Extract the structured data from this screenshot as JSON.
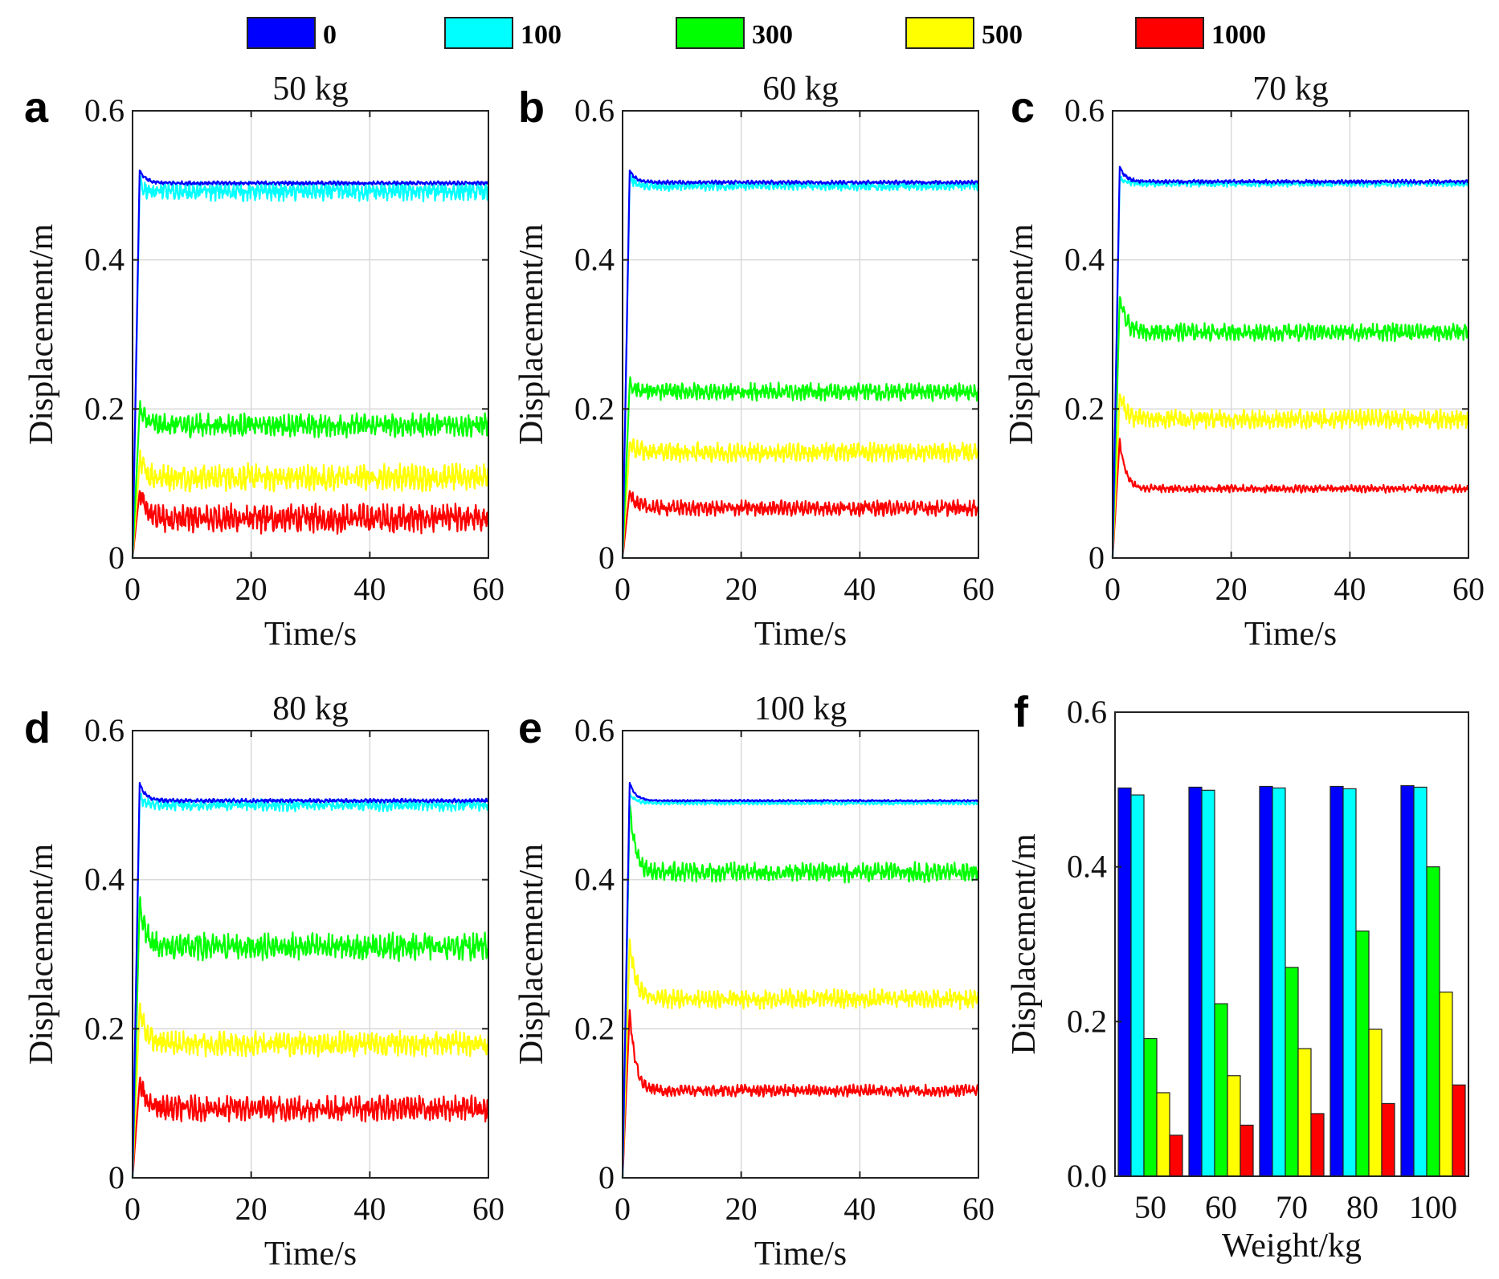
{
  "legend": {
    "entries": [
      {
        "label": "0",
        "color": "#0000ff"
      },
      {
        "label": "100",
        "color": "#00ffff"
      },
      {
        "label": "300",
        "color": "#00ff00"
      },
      {
        "label": "500",
        "color": "#ffff00"
      },
      {
        "label": "1000",
        "color": "#ff0000"
      }
    ]
  },
  "chart_data": [
    {
      "panel": "a",
      "type": "line",
      "title": "50 kg",
      "xlabel": "Time/s",
      "ylabel": "Displacement/m",
      "xlim": [
        0,
        60
      ],
      "ylim": [
        0,
        0.6
      ],
      "xticks": [
        "0",
        "20",
        "40",
        "60"
      ],
      "yticks": [
        "0",
        "0.2",
        "0.4",
        "0.6"
      ],
      "grid": true,
      "series": [
        {
          "name": "0",
          "color": "#0000ff",
          "peak": 0.52,
          "steady": 0.503,
          "noise": 0.002
        },
        {
          "name": "100",
          "color": "#00ffff",
          "peak": 0.5,
          "steady": 0.492,
          "noise": 0.01
        },
        {
          "name": "300",
          "color": "#00ff00",
          "peak": 0.2,
          "steady": 0.178,
          "noise": 0.012
        },
        {
          "name": "500",
          "color": "#ffff00",
          "peak": 0.13,
          "steady": 0.108,
          "noise": 0.014
        },
        {
          "name": "1000",
          "color": "#ff0000",
          "peak": 0.09,
          "steady": 0.053,
          "noise": 0.015
        }
      ]
    },
    {
      "panel": "b",
      "type": "line",
      "title": "60 kg",
      "xlabel": "Time/s",
      "ylabel": "Displacement/m",
      "xlim": [
        0,
        60
      ],
      "ylim": [
        0,
        0.6
      ],
      "xticks": [
        "0",
        "20",
        "40",
        "60"
      ],
      "yticks": [
        "0",
        "0.2",
        "0.4",
        "0.6"
      ],
      "grid": true,
      "series": [
        {
          "name": "0",
          "color": "#0000ff",
          "peak": 0.52,
          "steady": 0.504,
          "noise": 0.002
        },
        {
          "name": "100",
          "color": "#00ffff",
          "peak": 0.51,
          "steady": 0.499,
          "noise": 0.005
        },
        {
          "name": "300",
          "color": "#00ff00",
          "peak": 0.235,
          "steady": 0.223,
          "noise": 0.009
        },
        {
          "name": "500",
          "color": "#ffff00",
          "peak": 0.155,
          "steady": 0.142,
          "noise": 0.01
        },
        {
          "name": "1000",
          "color": "#ff0000",
          "peak": 0.09,
          "steady": 0.067,
          "noise": 0.008
        }
      ]
    },
    {
      "panel": "c",
      "type": "line",
      "title": "70 kg",
      "xlabel": "Time/s",
      "ylabel": "Displacement/m",
      "xlim": [
        0,
        60
      ],
      "ylim": [
        0,
        0.6
      ],
      "xticks": [
        "0",
        "20",
        "40",
        "60"
      ],
      "yticks": [
        "0",
        "0.2",
        "0.4",
        "0.6"
      ],
      "grid": true,
      "series": [
        {
          "name": "0",
          "color": "#0000ff",
          "peak": 0.525,
          "steady": 0.505,
          "noise": 0.002
        },
        {
          "name": "100",
          "color": "#00ffff",
          "peak": 0.51,
          "steady": 0.502,
          "noise": 0.003
        },
        {
          "name": "300",
          "color": "#00ff00",
          "peak": 0.35,
          "steady": 0.303,
          "noise": 0.009
        },
        {
          "name": "500",
          "color": "#ffff00",
          "peak": 0.22,
          "steady": 0.186,
          "noise": 0.01
        },
        {
          "name": "1000",
          "color": "#ff0000",
          "peak": 0.16,
          "steady": 0.093,
          "noise": 0.004
        }
      ]
    },
    {
      "panel": "d",
      "type": "line",
      "title": "80 kg",
      "xlabel": "Time/s",
      "ylabel": "Displacement/m",
      "xlim": [
        0,
        60
      ],
      "ylim": [
        0,
        0.6
      ],
      "xticks": [
        "0",
        "20",
        "40",
        "60"
      ],
      "yticks": [
        "0",
        "0.2",
        "0.4",
        "0.6"
      ],
      "grid": true,
      "series": [
        {
          "name": "0",
          "color": "#0000ff",
          "peak": 0.53,
          "steady": 0.506,
          "noise": 0.002
        },
        {
          "name": "100",
          "color": "#00ffff",
          "peak": 0.51,
          "steady": 0.5,
          "noise": 0.006
        },
        {
          "name": "300",
          "color": "#00ff00",
          "peak": 0.37,
          "steady": 0.31,
          "noise": 0.014
        },
        {
          "name": "500",
          "color": "#ffff00",
          "peak": 0.23,
          "steady": 0.18,
          "noise": 0.013
        },
        {
          "name": "1000",
          "color": "#ff0000",
          "peak": 0.13,
          "steady": 0.093,
          "noise": 0.013
        }
      ]
    },
    {
      "panel": "e",
      "type": "line",
      "title": "100 kg",
      "xlabel": "Time/s",
      "ylabel": "Displacement/m",
      "xlim": [
        0,
        60
      ],
      "ylim": [
        0,
        0.6
      ],
      "xticks": [
        "0",
        "20",
        "40",
        "60"
      ],
      "yticks": [
        "0",
        "0.2",
        "0.4",
        "0.6"
      ],
      "grid": true,
      "series": [
        {
          "name": "0",
          "color": "#0000ff",
          "peak": 0.53,
          "steady": 0.506,
          "noise": 0.001
        },
        {
          "name": "100",
          "color": "#00ffff",
          "peak": 0.515,
          "steady": 0.503,
          "noise": 0.002
        },
        {
          "name": "300",
          "color": "#00ff00",
          "peak": 0.5,
          "steady": 0.41,
          "noise": 0.01
        },
        {
          "name": "500",
          "color": "#ffff00",
          "peak": 0.32,
          "steady": 0.24,
          "noise": 0.01
        },
        {
          "name": "1000",
          "color": "#ff0000",
          "peak": 0.225,
          "steady": 0.117,
          "noise": 0.006
        }
      ]
    },
    {
      "panel": "f",
      "type": "bar",
      "title": "",
      "xlabel": "Weight/kg",
      "ylabel": "Displacement/m",
      "ylim": [
        0,
        0.6
      ],
      "yticks": [
        "0.0",
        "0.2",
        "0.4",
        "0.6"
      ],
      "grid": false,
      "categories": [
        "50",
        "60",
        "70",
        "80",
        "100"
      ],
      "series": [
        {
          "name": "0",
          "color": "#0000ff",
          "values": [
            0.502,
            0.503,
            0.504,
            0.504,
            0.505
          ]
        },
        {
          "name": "100",
          "color": "#00ffff",
          "values": [
            0.493,
            0.499,
            0.502,
            0.501,
            0.503
          ]
        },
        {
          "name": "300",
          "color": "#00ff00",
          "values": [
            0.178,
            0.223,
            0.27,
            0.317,
            0.4
          ]
        },
        {
          "name": "500",
          "color": "#ffff00",
          "values": [
            0.108,
            0.13,
            0.165,
            0.19,
            0.238
          ]
        },
        {
          "name": "1000",
          "color": "#ff0000",
          "values": [
            0.053,
            0.066,
            0.081,
            0.094,
            0.118
          ]
        }
      ]
    }
  ]
}
